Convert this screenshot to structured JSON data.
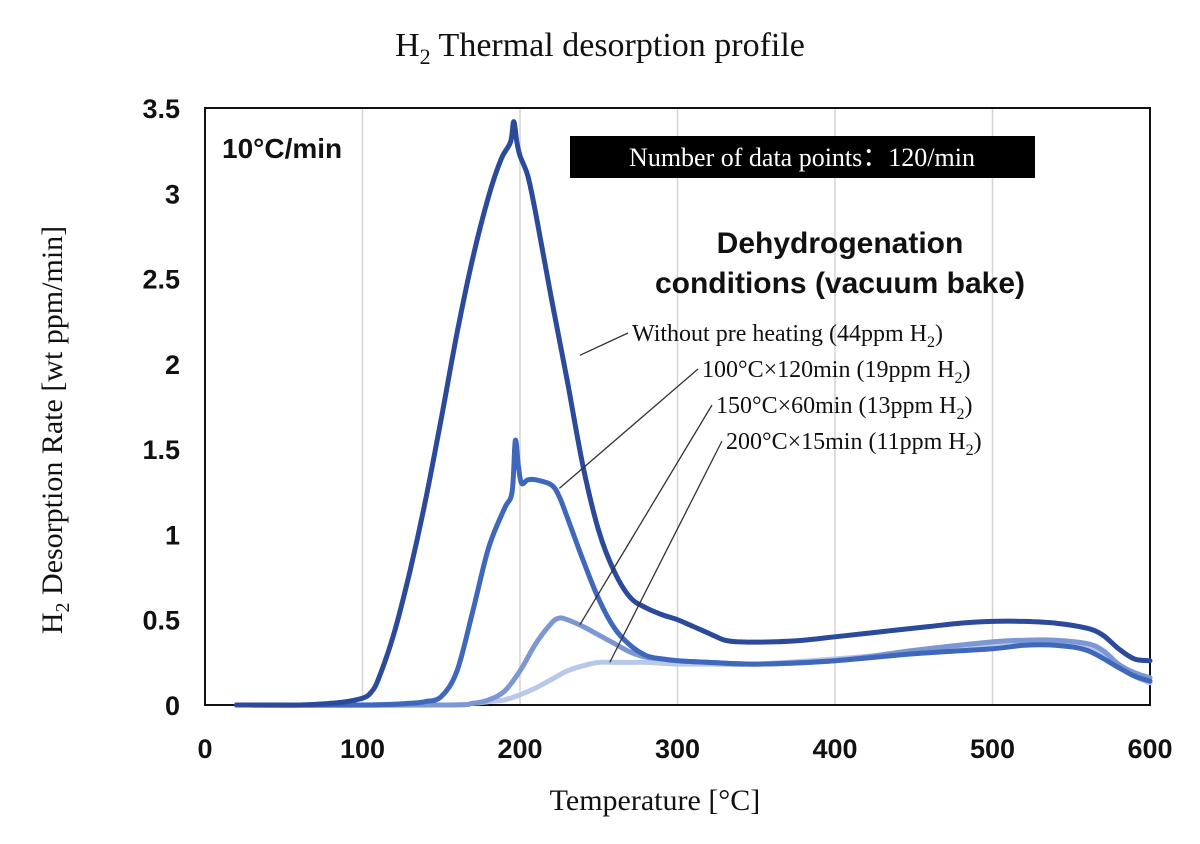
{
  "chart_data": {
    "type": "line",
    "title_main": "H",
    "title_sub": "2",
    "title_rest": " Thermal desorption profile",
    "xlabel": "Temperature [°C]",
    "ylabel_main": "H",
    "ylabel_sub": "2",
    "ylabel_rest": " Desorption Rate [wt ppm/min]",
    "xlim": [
      0,
      600
    ],
    "ylim": [
      0,
      3.5
    ],
    "xticks": [
      0,
      100,
      200,
      300,
      400,
      500,
      600
    ],
    "yticks": [
      0,
      0.5,
      1,
      1.5,
      2,
      2.5,
      3,
      3.5
    ],
    "ytick_labels": [
      "0",
      "0.5",
      "1",
      "1.5",
      "2",
      "2.5",
      "3",
      "3.5"
    ],
    "grid": "vertical",
    "rate_label": "10°C/min",
    "data_points_label": "Number of data points：120/min",
    "legend_heading_line1": "Dehydrogenation",
    "legend_heading_line2": "conditions (vacuum bake)",
    "series": [
      {
        "name": "Without pre heating (44ppm H2)",
        "label_main": "Without pre heating (44ppm H",
        "label_sub": "2",
        "label_end": ")",
        "color": "#2b4a9c",
        "leader_point": [
          238,
          2.05
        ],
        "x": [
          20,
          60,
          80,
          90,
          100,
          105,
          110,
          120,
          130,
          140,
          150,
          160,
          170,
          180,
          188,
          194,
          196,
          198,
          200,
          205,
          210,
          220,
          230,
          240,
          250,
          260,
          270,
          280,
          290,
          300,
          310,
          320,
          330,
          340,
          360,
          380,
          400,
          420,
          440,
          460,
          480,
          500,
          520,
          540,
          560,
          570,
          580,
          590,
          600
        ],
        "y": [
          0,
          0,
          0.01,
          0.02,
          0.04,
          0.07,
          0.15,
          0.42,
          0.78,
          1.2,
          1.68,
          2.18,
          2.62,
          2.98,
          3.2,
          3.3,
          3.42,
          3.3,
          3.22,
          3.1,
          2.88,
          2.38,
          1.9,
          1.4,
          1.02,
          0.78,
          0.63,
          0.57,
          0.53,
          0.5,
          0.46,
          0.42,
          0.38,
          0.37,
          0.37,
          0.38,
          0.4,
          0.42,
          0.44,
          0.46,
          0.48,
          0.49,
          0.49,
          0.48,
          0.45,
          0.41,
          0.33,
          0.27,
          0.26
        ]
      },
      {
        "name": "100°C×120min (19ppm H2)",
        "label_main": "100°C×120min (19ppm H",
        "label_sub": "2",
        "label_end": ")",
        "color": "#3f68bd",
        "leader_point": [
          225,
          1.27
        ],
        "x": [
          20,
          100,
          130,
          140,
          150,
          160,
          170,
          180,
          190,
          195,
          197,
          199,
          201,
          205,
          210,
          220,
          225,
          230,
          240,
          250,
          260,
          270,
          280,
          290,
          300,
          320,
          350,
          400,
          450,
          500,
          520,
          540,
          560,
          580,
          590,
          600
        ],
        "y": [
          0,
          0,
          0.01,
          0.02,
          0.05,
          0.2,
          0.55,
          0.92,
          1.15,
          1.25,
          1.55,
          1.4,
          1.3,
          1.32,
          1.32,
          1.29,
          1.22,
          1.1,
          0.85,
          0.62,
          0.45,
          0.35,
          0.29,
          0.27,
          0.26,
          0.25,
          0.24,
          0.26,
          0.3,
          0.33,
          0.35,
          0.35,
          0.32,
          0.22,
          0.17,
          0.14
        ]
      },
      {
        "name": "150°C×60min (13ppm H2)",
        "label_main": "150°C×60min (13ppm H",
        "label_sub": "2",
        "label_end": ")",
        "color": "#7d97d3",
        "leader_point": [
          238,
          0.47
        ],
        "x": [
          20,
          150,
          170,
          180,
          190,
          200,
          210,
          220,
          225,
          230,
          240,
          250,
          260,
          270,
          280,
          290,
          300,
          320,
          350,
          400,
          450,
          500,
          520,
          540,
          560,
          570,
          580,
          590,
          600
        ],
        "y": [
          0,
          0,
          0.01,
          0.03,
          0.08,
          0.2,
          0.36,
          0.48,
          0.51,
          0.5,
          0.46,
          0.41,
          0.36,
          0.31,
          0.28,
          0.27,
          0.26,
          0.25,
          0.24,
          0.26,
          0.32,
          0.37,
          0.38,
          0.38,
          0.36,
          0.32,
          0.24,
          0.19,
          0.16
        ]
      },
      {
        "name": "200°C×15min (11ppm H2)",
        "label_main": "200°C×15min (11ppm H",
        "label_sub": "2",
        "label_end": ")",
        "color": "#b8c8ea",
        "leader_point": [
          257,
          0.25
        ],
        "x": [
          20,
          150,
          170,
          180,
          190,
          200,
          210,
          220,
          230,
          240,
          250,
          260,
          270,
          280,
          300,
          320,
          350,
          400,
          450,
          500,
          520,
          540,
          560,
          575,
          590,
          600
        ],
        "y": [
          0,
          0,
          0.01,
          0.02,
          0.03,
          0.06,
          0.1,
          0.15,
          0.2,
          0.23,
          0.25,
          0.25,
          0.25,
          0.25,
          0.24,
          0.24,
          0.24,
          0.27,
          0.31,
          0.36,
          0.37,
          0.36,
          0.33,
          0.27,
          0.17,
          0.13
        ]
      }
    ]
  }
}
